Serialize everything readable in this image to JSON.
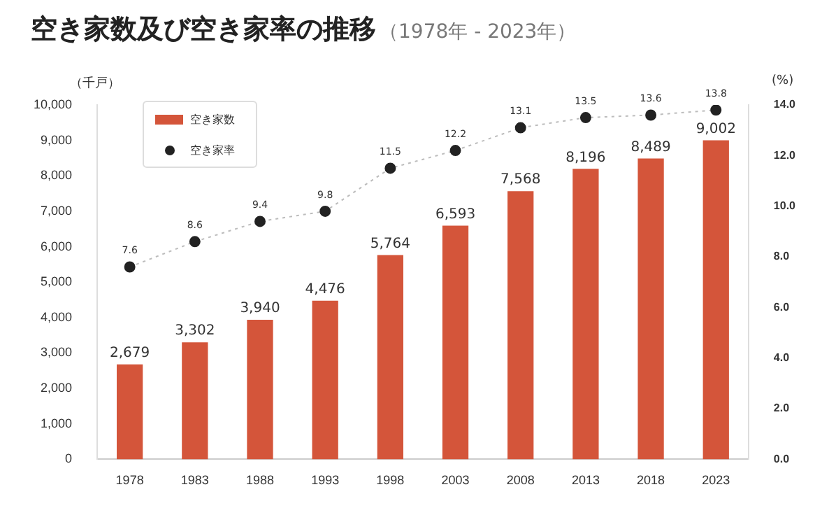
{
  "chart_data": {
    "type": "bar",
    "title": "空き家数及び空き家率の推移",
    "subtitle": "（1978年 - 2023年）",
    "ylabel": "（千戸）",
    "y2label": "(%)",
    "categories": [
      "1978",
      "1983",
      "1988",
      "1993",
      "1998",
      "2003",
      "2008",
      "2013",
      "2018",
      "2023"
    ],
    "series": [
      {
        "name": "空き家数",
        "color": "#d4553a",
        "values": [
          2679,
          3302,
          3940,
          4476,
          5764,
          6593,
          7568,
          8196,
          8489,
          9002
        ],
        "value_labels": [
          "2,679",
          "3,302",
          "3,940",
          "4,476",
          "5,764",
          "6,593",
          "7,568",
          "8,196",
          "8,489",
          "9,002"
        ]
      },
      {
        "name": "空き家率",
        "type": "line",
        "axis": "y2",
        "color": "#222222",
        "line_style": "dotted",
        "marker": "circle",
        "values": [
          7.6,
          8.6,
          9.4,
          9.8,
          11.5,
          12.2,
          13.1,
          13.5,
          13.6,
          13.8
        ]
      }
    ],
    "ylim": [
      0,
      10000
    ],
    "yticks": [
      {
        "value": 0,
        "label": "0"
      },
      {
        "value": 1000,
        "label": "1,000"
      },
      {
        "value": 2000,
        "label": "2,000"
      },
      {
        "value": 3000,
        "label": "3,000"
      },
      {
        "value": 4000,
        "label": "4,000"
      },
      {
        "value": 5000,
        "label": "5,000"
      },
      {
        "value": 6000,
        "label": "6,000"
      },
      {
        "value": 7000,
        "label": "7,000"
      },
      {
        "value": 8000,
        "label": "8,000"
      },
      {
        "value": 9000,
        "label": "9,000"
      },
      {
        "value": 10000,
        "label": "10,000"
      }
    ],
    "y2lim": [
      0,
      14
    ],
    "y2ticks": [
      {
        "value": 0,
        "label": "0.0"
      },
      {
        "value": 2,
        "label": "2.0"
      },
      {
        "value": 4,
        "label": "4.0"
      },
      {
        "value": 6,
        "label": "6.0"
      },
      {
        "value": 8,
        "label": "8.0"
      },
      {
        "value": 10,
        "label": "10.0"
      },
      {
        "value": 12,
        "label": "12.0"
      },
      {
        "value": 14,
        "label": "14.0"
      }
    ],
    "data_labels": true,
    "grid": false,
    "legend": "top left"
  }
}
